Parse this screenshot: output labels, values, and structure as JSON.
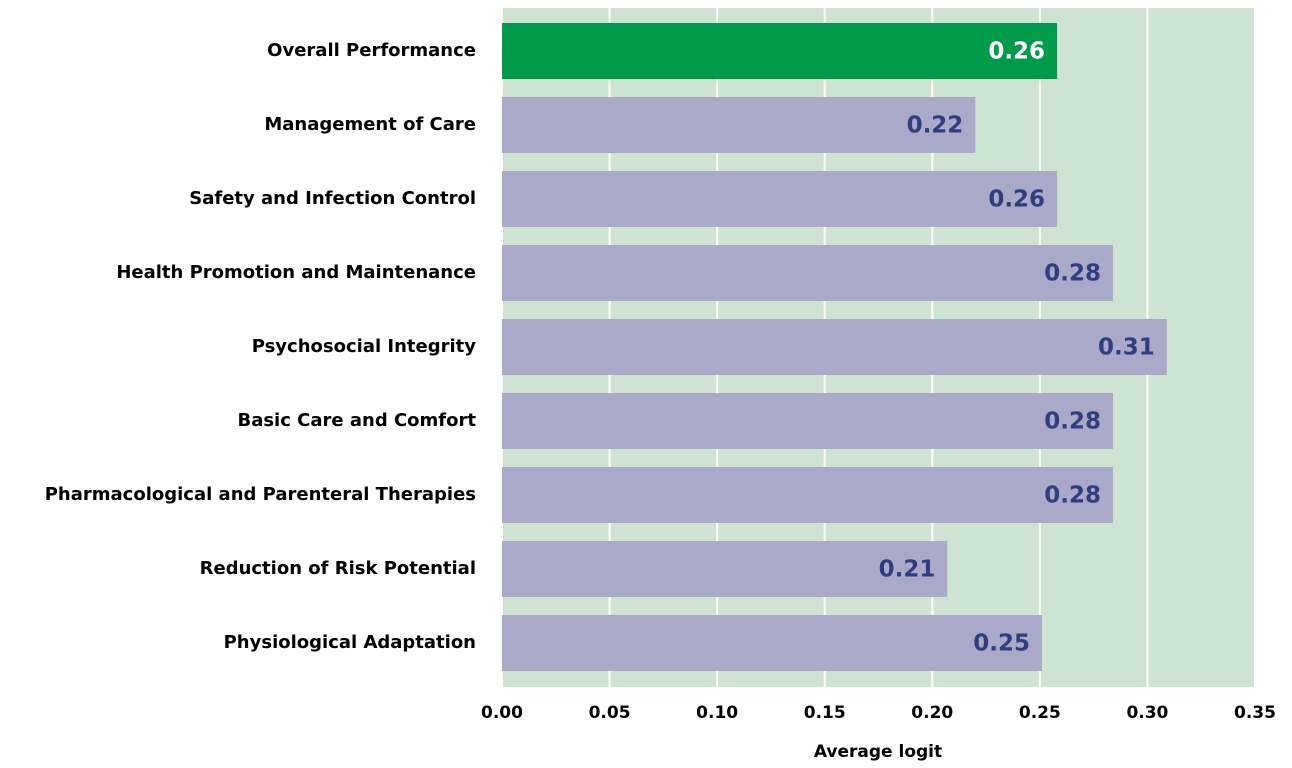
{
  "chart_data": {
    "type": "hbar",
    "x_label": "Average logit",
    "categories": [
      "Overall Performance",
      "Management of Care",
      "Safety and Infection Control",
      "Health Promotion and Maintenance",
      "Psychosocial Integrity",
      "Basic Care and Comfort",
      "Pharmacological and Parenteral Therapies",
      "Reduction of Risk Potential",
      "Physiological Adaptation"
    ],
    "values": [
      0.258,
      0.22,
      0.258,
      0.284,
      0.309,
      0.284,
      0.284,
      0.207,
      0.251
    ],
    "value_labels": [
      "0.26",
      "0.22",
      "0.26",
      "0.28",
      "0.31",
      "0.28",
      "0.28",
      "0.21",
      "0.25"
    ],
    "colors": [
      "#009a4a",
      "#aaaac8",
      "#aaaac8",
      "#aaaac8",
      "#aaaac8",
      "#aaaac8",
      "#aaaac8",
      "#aaaac8",
      "#aaaac8"
    ],
    "value_label_colors": [
      "#ffffff",
      "#2e3e7e",
      "#2e3e7e",
      "#2e3e7e",
      "#2e3e7e",
      "#2e3e7e",
      "#2e3e7e",
      "#2e3e7e",
      "#2e3e7e"
    ],
    "plot_background": "#cfe3d3",
    "xlim": [
      0,
      0.35
    ],
    "xticks": [
      {
        "value": 0,
        "label": "0.00"
      },
      {
        "value": 0.05,
        "label": "0.05"
      },
      {
        "value": 0.1,
        "label": "0.10"
      },
      {
        "value": 0.15,
        "label": "0.15"
      },
      {
        "value": 0.2,
        "label": "0.20"
      },
      {
        "value": 0.25,
        "label": "0.25"
      },
      {
        "value": 0.3,
        "label": "0.30"
      },
      {
        "value": 0.35,
        "label": "0.35"
      }
    ],
    "grid": true
  }
}
